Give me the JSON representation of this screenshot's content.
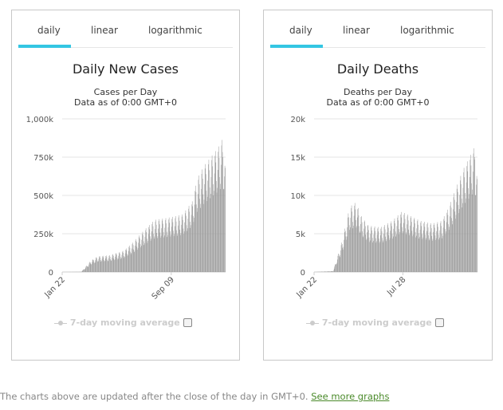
{
  "left": {
    "tabs": [
      "daily",
      "linear",
      "logarithmic"
    ],
    "title": "Daily New Cases",
    "subtitle": "Cases per Day",
    "data_note": "Data as of 0:00 GMT+0",
    "legend": "7-day moving average"
  },
  "right": {
    "tabs": [
      "daily",
      "linear",
      "logarithmic"
    ],
    "title": "Daily Deaths",
    "subtitle": "Deaths per Day",
    "data_note": "Data as of 0:00 GMT+0",
    "legend": "7-day moving average"
  },
  "footer": {
    "text": "The charts above are updated after the close of the day in GMT+0.",
    "link": "See more graphs"
  },
  "colors": {
    "bar": "#9a9a9a",
    "active_tab": "#34c6e3",
    "grid": "#e6e6e6"
  },
  "chart_data": [
    {
      "type": "bar",
      "title": "Daily New Cases",
      "subtitle": "Cases per Day",
      "xlabel": "",
      "ylabel": "",
      "ylim": [
        0,
        1000000
      ],
      "y_ticks": [
        "0",
        "250k",
        "500k",
        "750k",
        "1,000k"
      ],
      "y_tick_values": [
        0,
        250000,
        500000,
        750000,
        1000000
      ],
      "x_tick_labels": [
        "Jan 22",
        "Sep 09"
      ],
      "x_tick_indices": [
        0,
        231
      ],
      "n_days": 346,
      "profile": [
        [
          0,
          0
        ],
        [
          40,
          1000
        ],
        [
          60,
          60000
        ],
        [
          75,
          85000
        ],
        [
          100,
          90000
        ],
        [
          130,
          115000
        ],
        [
          150,
          160000
        ],
        [
          175,
          230000
        ],
        [
          195,
          280000
        ],
        [
          220,
          290000
        ],
        [
          240,
          300000
        ],
        [
          255,
          310000
        ],
        [
          275,
          380000
        ],
        [
          285,
          500000
        ],
        [
          300,
          570000
        ],
        [
          315,
          620000
        ],
        [
          330,
          670000
        ],
        [
          340,
          720000
        ],
        [
          345,
          560000
        ]
      ],
      "weekly_amplitude": 0.22,
      "peak": 750000,
      "grid": true
    },
    {
      "type": "bar",
      "title": "Daily Deaths",
      "subtitle": "Deaths per Day",
      "xlabel": "",
      "ylabel": "",
      "ylim": [
        0,
        20000
      ],
      "y_ticks": [
        "0",
        "5k",
        "10k",
        "15k",
        "20k"
      ],
      "y_tick_values": [
        0,
        5000,
        10000,
        15000,
        20000
      ],
      "x_tick_labels": [
        "Jan 22",
        "Jul 28"
      ],
      "x_tick_indices": [
        0,
        188
      ],
      "n_days": 346,
      "profile": [
        [
          0,
          0
        ],
        [
          40,
          100
        ],
        [
          60,
          3500
        ],
        [
          75,
          7000
        ],
        [
          88,
          7500
        ],
        [
          100,
          6000
        ],
        [
          115,
          5000
        ],
        [
          140,
          4800
        ],
        [
          165,
          5500
        ],
        [
          185,
          6500
        ],
        [
          205,
          6000
        ],
        [
          225,
          5500
        ],
        [
          250,
          5200
        ],
        [
          270,
          5500
        ],
        [
          285,
          7000
        ],
        [
          300,
          9000
        ],
        [
          315,
          11000
        ],
        [
          330,
          12500
        ],
        [
          340,
          13500
        ],
        [
          345,
          10000
        ]
      ],
      "weekly_amplitude": 0.22,
      "peak": 15000,
      "grid": true
    }
  ]
}
